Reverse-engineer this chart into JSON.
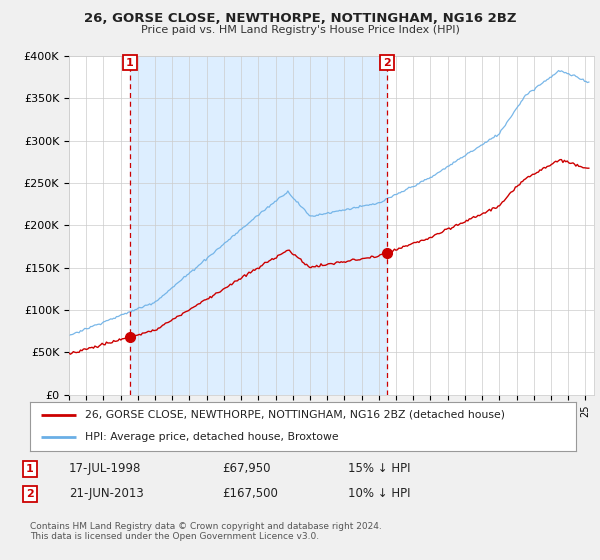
{
  "title": "26, GORSE CLOSE, NEWTHORPE, NOTTINGHAM, NG16 2BZ",
  "subtitle": "Price paid vs. HM Land Registry's House Price Index (HPI)",
  "ylim": [
    0,
    400000
  ],
  "yticks": [
    0,
    50000,
    100000,
    150000,
    200000,
    250000,
    300000,
    350000,
    400000
  ],
  "ytick_labels": [
    "£0",
    "£50K",
    "£100K",
    "£150K",
    "£200K",
    "£250K",
    "£300K",
    "£350K",
    "£400K"
  ],
  "hpi_color": "#6aafe6",
  "price_color": "#cc0000",
  "shade_color": "#ddeeff",
  "sale1_year": 1998.54,
  "sale1_price": 67950,
  "sale1_date": "17-JUL-1998",
  "sale1_note": "15% ↓ HPI",
  "sale2_year": 2013.47,
  "sale2_price": 167500,
  "sale2_date": "21-JUN-2013",
  "sale2_note": "10% ↓ HPI",
  "legend_house": "26, GORSE CLOSE, NEWTHORPE, NOTTINGHAM, NG16 2BZ (detached house)",
  "legend_hpi": "HPI: Average price, detached house, Broxtowe",
  "footer": "Contains HM Land Registry data © Crown copyright and database right 2024.\nThis data is licensed under the Open Government Licence v3.0.",
  "bg_color": "#f0f0f0",
  "plot_bg": "#ffffff",
  "xlim_start": 1995.0,
  "xlim_end": 2025.5
}
